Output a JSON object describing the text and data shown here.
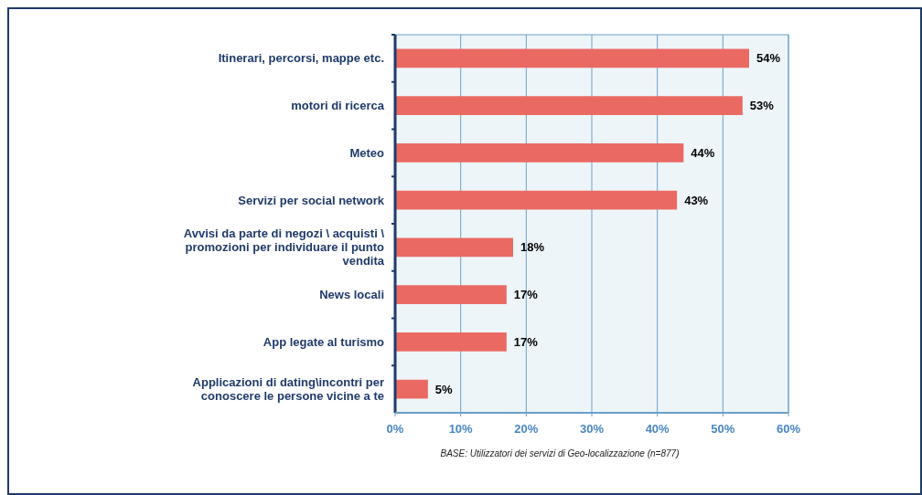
{
  "chart_data": {
    "type": "bar",
    "orientation": "horizontal",
    "categories": [
      "Itinerari, percorsi, mappe etc.",
      "motori di ricerca",
      "Meteo",
      "Servizi per social network",
      "Avvisi da parte di negozi \\ acquisti \\ promozioni per individuare il punto vendita",
      "News locali",
      "App legate al turismo",
      "Applicazioni di dating\\incontri per conoscere le persone vicine a te"
    ],
    "values": [
      54,
      53,
      44,
      43,
      18,
      17,
      17,
      5
    ],
    "value_labels": [
      "54%",
      "53%",
      "44%",
      "43%",
      "18%",
      "17%",
      "17%",
      "5%"
    ],
    "color": "#ea6a63",
    "xlim": [
      0,
      60
    ],
    "xticks": [
      {
        "value": 0,
        "label": "0%"
      },
      {
        "value": 10,
        "label": "10%"
      },
      {
        "value": 20,
        "label": "20%"
      },
      {
        "value": 30,
        "label": "30%"
      },
      {
        "value": 40,
        "label": "40%"
      },
      {
        "value": 50,
        "label": "50%"
      },
      {
        "value": 60,
        "label": "60%"
      }
    ],
    "grid": "x",
    "annotations": [
      "BASE: Utilizzatori dei servizi di Geo-localizzazione (n=877)"
    ]
  }
}
